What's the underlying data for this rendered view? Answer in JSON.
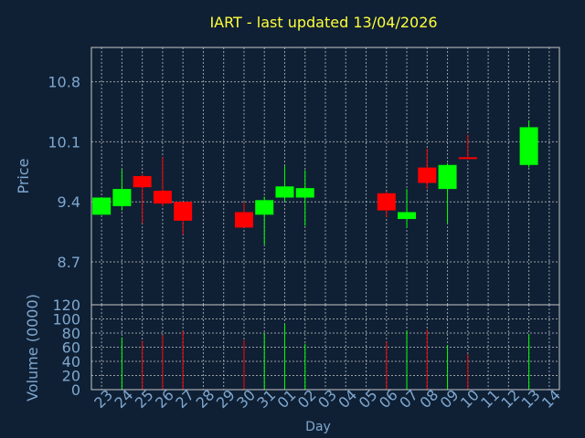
{
  "title": "IART - last updated 13/04/2026",
  "colors": {
    "background": "#0f2035",
    "axis_text": "#7fa7cf",
    "title": "#ffff3a",
    "up": "#00ff00",
    "down": "#ff0000",
    "frame": "#c8c8c8",
    "grid": "#c8c8c8"
  },
  "chart_data": [
    {
      "type": "candlestick",
      "ylabel": "Price",
      "xlabel": "Day",
      "ylim": [
        8.2,
        11.2
      ],
      "yticks": [
        8.7,
        9.4,
        10.1,
        10.8
      ],
      "ytick_labels": [
        "8.7",
        "9.4",
        "10.1",
        "10.8"
      ],
      "grid": true,
      "days": [
        "23",
        "24",
        "25",
        "26",
        "27",
        "28",
        "29",
        "30",
        "31",
        "01",
        "02",
        "03",
        "04",
        "05",
        "06",
        "07",
        "08",
        "09",
        "10",
        "11",
        "12",
        "13",
        "14"
      ],
      "candles": [
        {
          "day": "23",
          "open": 9.25,
          "high": 9.45,
          "low": 9.25,
          "close": 9.45
        },
        {
          "day": "24",
          "open": 9.35,
          "high": 9.78,
          "low": 9.3,
          "close": 9.55
        },
        {
          "day": "25",
          "open": 9.7,
          "high": 9.72,
          "low": 9.15,
          "close": 9.57
        },
        {
          "day": "26",
          "open": 9.53,
          "high": 9.92,
          "low": 9.35,
          "close": 9.38
        },
        {
          "day": "27",
          "open": 9.4,
          "high": 9.4,
          "low": 9.02,
          "close": 9.18
        },
        {
          "day": "30",
          "open": 9.28,
          "high": 9.4,
          "low": 9.1,
          "close": 9.1
        },
        {
          "day": "31",
          "open": 9.25,
          "high": 9.46,
          "low": 8.9,
          "close": 9.42
        },
        {
          "day": "01",
          "open": 9.45,
          "high": 9.82,
          "low": 9.4,
          "close": 9.58
        },
        {
          "day": "02",
          "open": 9.45,
          "high": 9.77,
          "low": 9.12,
          "close": 9.56
        },
        {
          "day": "06",
          "open": 9.5,
          "high": 9.52,
          "low": 9.22,
          "close": 9.3
        },
        {
          "day": "07",
          "open": 9.2,
          "high": 9.55,
          "low": 9.1,
          "close": 9.28
        },
        {
          "day": "08",
          "open": 9.8,
          "high": 10.02,
          "low": 9.55,
          "close": 9.62
        },
        {
          "day": "09",
          "open": 9.55,
          "high": 9.85,
          "low": 9.15,
          "close": 9.83
        },
        {
          "day": "10",
          "open": 9.92,
          "high": 10.18,
          "low": 9.9,
          "close": 9.9
        },
        {
          "day": "13",
          "open": 9.83,
          "high": 10.35,
          "low": 9.8,
          "close": 10.27
        }
      ]
    },
    {
      "type": "bar",
      "ylabel": "Volume (0000)",
      "ylim": [
        0,
        120
      ],
      "yticks": [
        0,
        20,
        40,
        60,
        80,
        100,
        120
      ],
      "ytick_labels": [
        "0",
        "20",
        "40",
        "60",
        "80",
        "100",
        "120"
      ],
      "bars": [
        {
          "day": "24",
          "value": 74,
          "dir": "up"
        },
        {
          "day": "25",
          "value": 69,
          "dir": "down"
        },
        {
          "day": "26",
          "value": 77,
          "dir": "down"
        },
        {
          "day": "27",
          "value": 83,
          "dir": "down"
        },
        {
          "day": "30",
          "value": 70,
          "dir": "down"
        },
        {
          "day": "31",
          "value": 80,
          "dir": "up"
        },
        {
          "day": "01",
          "value": 93,
          "dir": "up"
        },
        {
          "day": "02",
          "value": 65,
          "dir": "up"
        },
        {
          "day": "06",
          "value": 68,
          "dir": "down"
        },
        {
          "day": "07",
          "value": 84,
          "dir": "up"
        },
        {
          "day": "08",
          "value": 85,
          "dir": "down"
        },
        {
          "day": "09",
          "value": 63,
          "dir": "up"
        },
        {
          "day": "10",
          "value": 50,
          "dir": "down"
        },
        {
          "day": "13",
          "value": 78,
          "dir": "up"
        }
      ]
    }
  ]
}
